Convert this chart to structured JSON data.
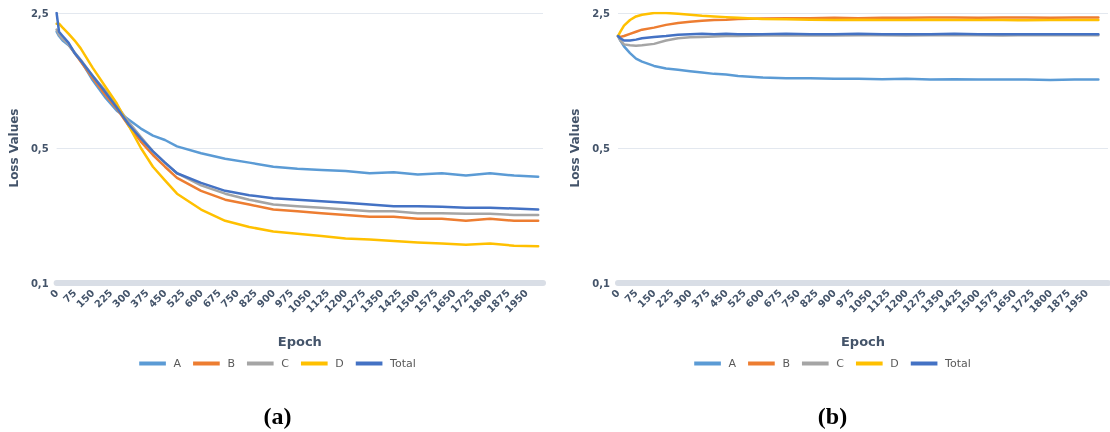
{
  "chart_data": [
    {
      "type": "line",
      "xlabel": "Epoch",
      "ylabel": "Loss Values",
      "annotations": [
        "(a)"
      ],
      "log": "y",
      "grid": "y",
      "legend": "bottom",
      "marker": "none",
      "line_style": "solid",
      "x": [
        0,
        10,
        25,
        50,
        75,
        100,
        150,
        200,
        250,
        300,
        350,
        400,
        450,
        500,
        600,
        700,
        800,
        900,
        1000,
        1100,
        1200,
        1300,
        1400,
        1500,
        1600,
        1700,
        1800,
        1900,
        2000
      ],
      "xlim": [
        0,
        2020
      ],
      "xticks": [
        0,
        75,
        150,
        225,
        300,
        375,
        450,
        525,
        600,
        675,
        750,
        825,
        900,
        975,
        1050,
        1125,
        1200,
        1275,
        1350,
        1425,
        1500,
        1575,
        1650,
        1725,
        1800,
        1875,
        1950
      ],
      "ylim": [
        0.1,
        2.5
      ],
      "yticks": [
        {
          "value": 0.1,
          "label": "0,1"
        },
        {
          "value": 0.5,
          "label": "0,5"
        },
        {
          "value": 2.5,
          "label": "2,5"
        }
      ],
      "series": [
        {
          "name": "A",
          "color": "#5b9bd5",
          "values": [
            2.0,
            1.9,
            1.8,
            1.7,
            1.55,
            1.42,
            1.12,
            0.92,
            0.78,
            0.7,
            0.63,
            0.58,
            0.55,
            0.51,
            0.47,
            0.44,
            0.42,
            0.4,
            0.39,
            0.385,
            0.38,
            0.37,
            0.375,
            0.365,
            0.37,
            0.36,
            0.37,
            0.36,
            0.355
          ]
        },
        {
          "name": "B",
          "color": "#ed7d31",
          "values": [
            null,
            null,
            null,
            1.72,
            1.55,
            1.4,
            1.15,
            0.95,
            0.8,
            0.65,
            0.54,
            0.46,
            0.4,
            0.35,
            0.3,
            0.27,
            0.255,
            0.24,
            0.235,
            0.23,
            0.225,
            0.22,
            0.22,
            0.215,
            0.215,
            0.21,
            0.215,
            0.21,
            0.21
          ]
        },
        {
          "name": "C",
          "color": "#a5a5a5",
          "values": [
            2.05,
            1.93,
            1.83,
            1.72,
            1.56,
            1.43,
            1.18,
            1.0,
            0.83,
            0.68,
            0.57,
            0.48,
            0.42,
            0.37,
            0.32,
            0.29,
            0.27,
            0.255,
            0.25,
            0.245,
            0.24,
            0.235,
            0.235,
            0.23,
            0.23,
            0.228,
            0.228,
            0.225,
            0.225
          ]
        },
        {
          "name": "D",
          "color": "#ffc000",
          "values": [
            2.2,
            2.2,
            2.1,
            1.95,
            1.8,
            1.64,
            1.3,
            1.05,
            0.85,
            0.65,
            0.5,
            0.4,
            0.34,
            0.29,
            0.24,
            0.21,
            0.195,
            0.185,
            0.18,
            0.175,
            0.17,
            0.168,
            0.165,
            0.162,
            0.16,
            0.158,
            0.16,
            0.156,
            0.155
          ]
        },
        {
          "name": "Total",
          "color": "#4472c4",
          "values": [
            2.5,
            2.0,
            1.9,
            1.75,
            1.55,
            1.42,
            1.18,
            0.98,
            0.81,
            0.66,
            0.56,
            0.48,
            0.42,
            0.37,
            0.33,
            0.3,
            0.285,
            0.275,
            0.27,
            0.265,
            0.26,
            0.255,
            0.25,
            0.25,
            0.248,
            0.245,
            0.245,
            0.243,
            0.24
          ]
        }
      ]
    },
    {
      "type": "line",
      "xlabel": "Epoch",
      "ylabel": "Loss Values",
      "annotations": [
        "(b)"
      ],
      "log": "y",
      "grid": "y",
      "legend": "bottom",
      "marker": "none",
      "line_style": "solid",
      "x": [
        0,
        10,
        25,
        50,
        75,
        100,
        150,
        200,
        250,
        300,
        350,
        400,
        450,
        500,
        600,
        700,
        800,
        900,
        1000,
        1100,
        1200,
        1300,
        1400,
        1500,
        1600,
        1700,
        1800,
        1900,
        2000
      ],
      "xlim": [
        0,
        2040
      ],
      "xticks": [
        0,
        75,
        150,
        225,
        300,
        375,
        450,
        525,
        600,
        675,
        750,
        825,
        900,
        975,
        1050,
        1125,
        1200,
        1275,
        1350,
        1425,
        1500,
        1575,
        1650,
        1725,
        1800,
        1875,
        1950
      ],
      "ylim": [
        0.1,
        2.5
      ],
      "yticks": [
        {
          "value": 0.1,
          "label": "0,1"
        },
        {
          "value": 0.5,
          "label": "0,5"
        },
        {
          "value": 2.5,
          "label": "2,5"
        }
      ],
      "series": [
        {
          "name": "A",
          "color": "#5b9bd5",
          "values": [
            1.9,
            1.8,
            1.68,
            1.55,
            1.45,
            1.4,
            1.33,
            1.29,
            1.27,
            1.25,
            1.23,
            1.21,
            1.2,
            1.18,
            1.16,
            1.15,
            1.15,
            1.14,
            1.14,
            1.135,
            1.14,
            1.13,
            1.135,
            1.13,
            1.13,
            1.13,
            1.125,
            1.13,
            1.13
          ]
        },
        {
          "name": "B",
          "color": "#ed7d31",
          "values": [
            1.9,
            1.88,
            1.9,
            1.95,
            2.0,
            2.05,
            2.1,
            2.17,
            2.22,
            2.25,
            2.28,
            2.3,
            2.31,
            2.33,
            2.34,
            2.35,
            2.35,
            2.36,
            2.35,
            2.36,
            2.36,
            2.37,
            2.37,
            2.36,
            2.37,
            2.37,
            2.36,
            2.37,
            2.37
          ]
        },
        {
          "name": "C",
          "color": "#a5a5a5",
          "values": [
            1.9,
            1.8,
            1.72,
            1.7,
            1.69,
            1.7,
            1.73,
            1.8,
            1.85,
            1.87,
            1.88,
            1.89,
            1.9,
            1.9,
            1.91,
            1.91,
            1.92,
            1.91,
            1.92,
            1.92,
            1.91,
            1.92,
            1.92,
            1.92,
            1.91,
            1.92,
            1.92,
            1.92,
            1.92
          ]
        },
        {
          "name": "D",
          "color": "#ffc000",
          "values": [
            1.9,
            2.0,
            2.15,
            2.3,
            2.4,
            2.45,
            2.5,
            2.5,
            2.48,
            2.45,
            2.42,
            2.4,
            2.38,
            2.36,
            2.33,
            2.32,
            2.31,
            2.3,
            2.31,
            2.3,
            2.3,
            2.31,
            2.3,
            2.3,
            2.3,
            2.29,
            2.3,
            2.3,
            2.3
          ]
        },
        {
          "name": "Total",
          "color": "#4472c4",
          "values": [
            1.9,
            1.85,
            1.8,
            1.8,
            1.82,
            1.85,
            1.88,
            1.9,
            1.93,
            1.94,
            1.95,
            1.94,
            1.95,
            1.94,
            1.94,
            1.95,
            1.94,
            1.94,
            1.95,
            1.94,
            1.94,
            1.94,
            1.95,
            1.94,
            1.94,
            1.94,
            1.94,
            1.94,
            1.94
          ]
        }
      ]
    }
  ]
}
